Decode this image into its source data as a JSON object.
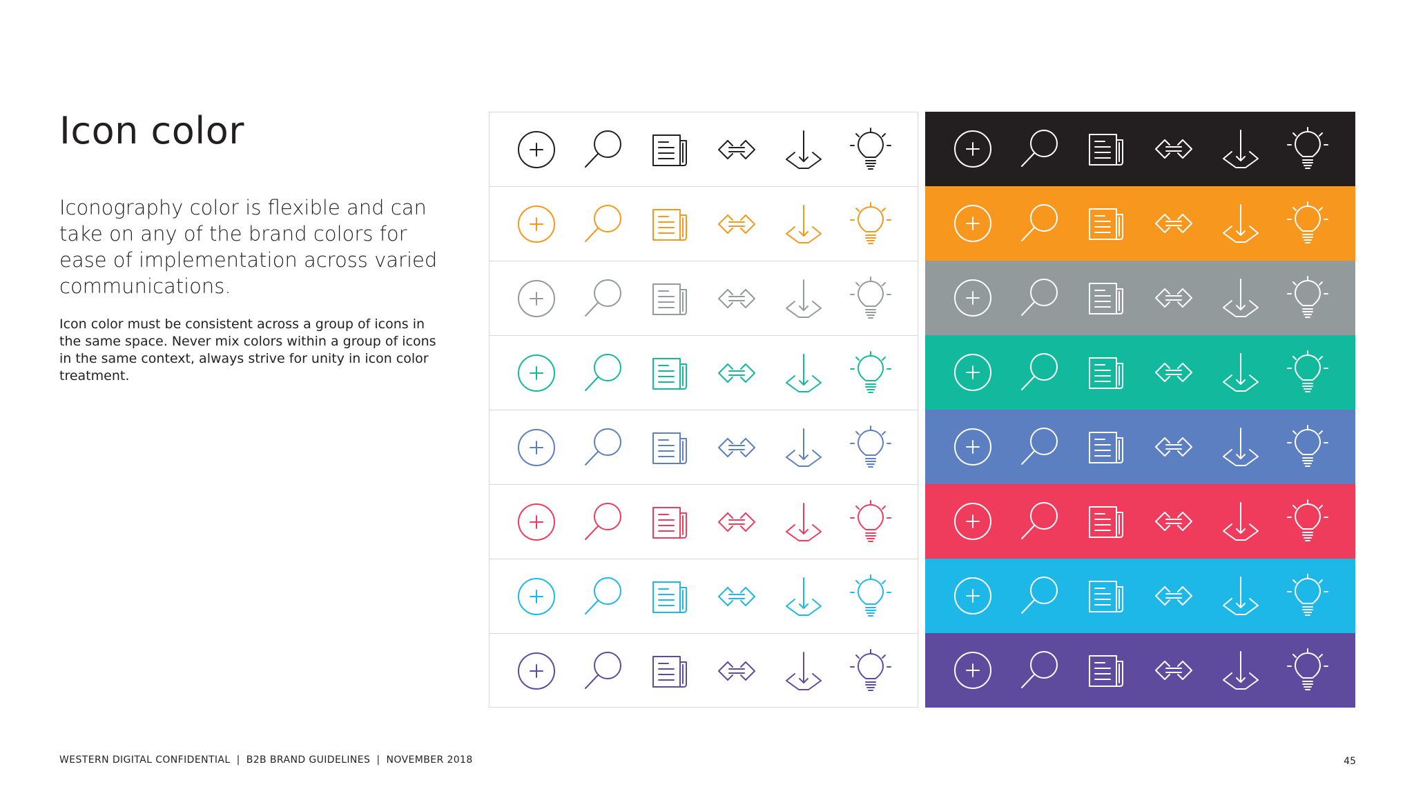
{
  "page": {
    "title": "Icon color",
    "lead": "Iconography color is flexible and can take on any of the brand colors for ease of implementation across varied communications.",
    "body": "Icon color must be consistent across a group of icons in the same space. Never mix colors within a group of icons in the same context, always strive for unity in icon color treatment."
  },
  "icons": [
    "plus-circle-icon",
    "magnifier-icon",
    "newspaper-icon",
    "exchange-arrows-icon",
    "download-arrow-icon",
    "lightbulb-icon"
  ],
  "brand_colors": [
    "#231f20",
    "#f7971d",
    "#939a9b",
    "#12b99c",
    "#5c7fc1",
    "#ef3c5d",
    "#1db8e8",
    "#5f4b9e"
  ],
  "footer": {
    "company": "WESTERN DIGITAL CONFIDENTIAL",
    "doc": "B2B BRAND GUIDELINES",
    "date": "NOVEMBER 2018",
    "page_number": "45"
  }
}
